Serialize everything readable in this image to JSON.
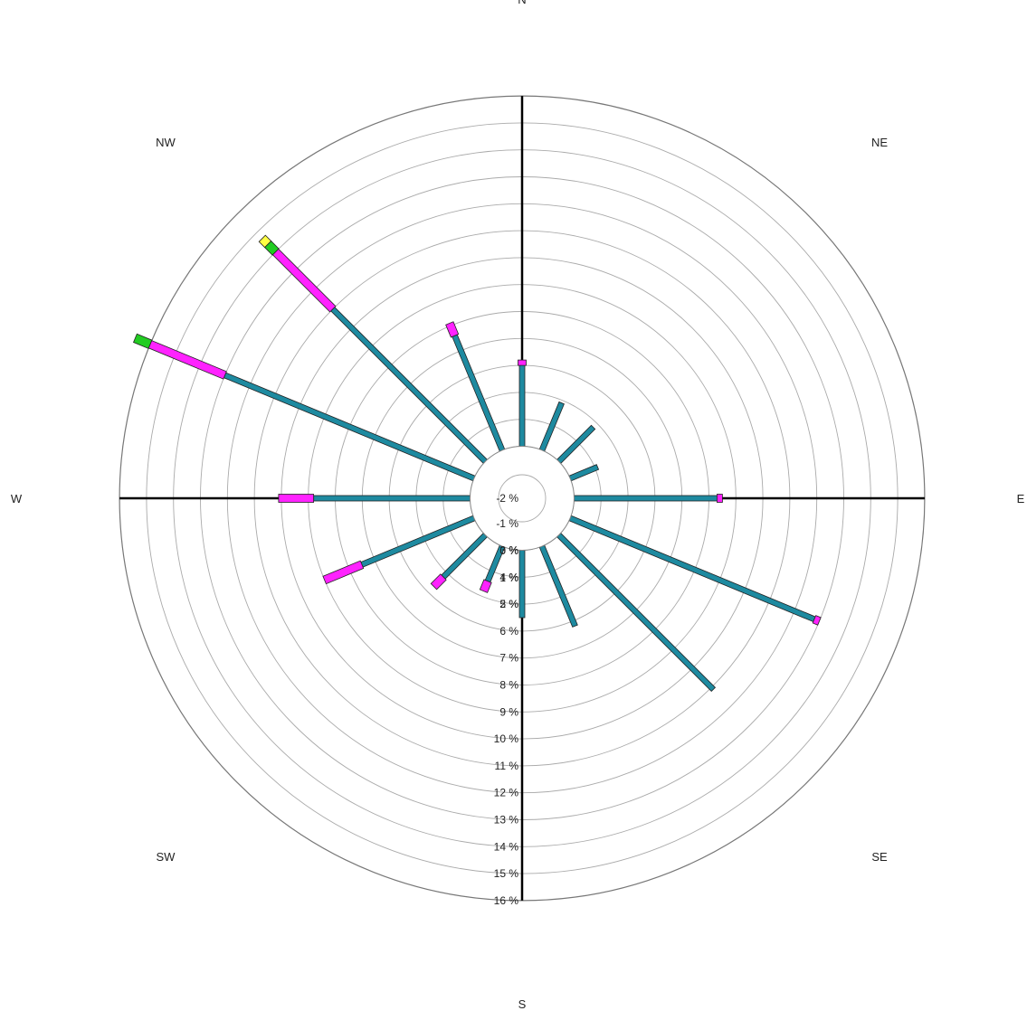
{
  "chart_data": {
    "type": "wind_rose",
    "directions": [
      "N",
      "NNE",
      "NE",
      "ENE",
      "E",
      "ESE",
      "SE",
      "SSE",
      "S",
      "SSW",
      "SW",
      "WSW",
      "W",
      "WNW",
      "NW",
      "NNW"
    ],
    "compass_labels": [
      {
        "dir": "N",
        "text": "N"
      },
      {
        "dir": "NE",
        "text": "NE"
      },
      {
        "dir": "E",
        "text": "E"
      },
      {
        "dir": "SE",
        "text": "SE"
      },
      {
        "dir": "S",
        "text": "S"
      },
      {
        "dir": "SW",
        "text": "SW"
      },
      {
        "dir": "W",
        "text": "W"
      },
      {
        "dir": "NW",
        "text": "NW"
      }
    ],
    "radial_axis": {
      "unit": "%",
      "center_hole_ticks": [
        "-2 %",
        "-1 %",
        "0 %",
        "1 %",
        "2 %"
      ],
      "rings": [
        3,
        4,
        5,
        6,
        7,
        8,
        9,
        10,
        11,
        12,
        13,
        14,
        15,
        16
      ],
      "ring_labels": [
        "3 %",
        "4 %",
        "5 %",
        "6 %",
        "7 %",
        "8 %",
        "9 %",
        "10 %",
        "11 %",
        "12 %",
        "13 %",
        "14 %",
        "15 %",
        "16 %"
      ],
      "range": [
        -2,
        16
      ]
    },
    "series_colors": [
      "#1e8aa0",
      "#ff22ff",
      "#22cc22",
      "#ffff44"
    ],
    "series": [
      {
        "values": [
          3.0,
          1.9,
          1.8,
          1.1,
          5.3,
          9.8,
          8.1,
          3.2,
          2.5,
          1.4,
          2.2,
          4.5,
          5.8,
          10.0,
          8.0,
          4.6
        ]
      },
      {
        "values": [
          0.2,
          0,
          0,
          0,
          0.2,
          0.2,
          0,
          0,
          0,
          0.4,
          0.5,
          1.5,
          1.3,
          3.0,
          3.0,
          0.5
        ]
      },
      {
        "values": [
          0,
          0,
          0,
          0,
          0,
          0,
          0,
          0,
          0,
          0,
          0,
          0,
          0,
          0.6,
          0.4,
          0
        ]
      },
      {
        "values": [
          0,
          0,
          0,
          0,
          0,
          0,
          0,
          0,
          0,
          0,
          0,
          0,
          0,
          0,
          0.3,
          0
        ]
      }
    ]
  }
}
